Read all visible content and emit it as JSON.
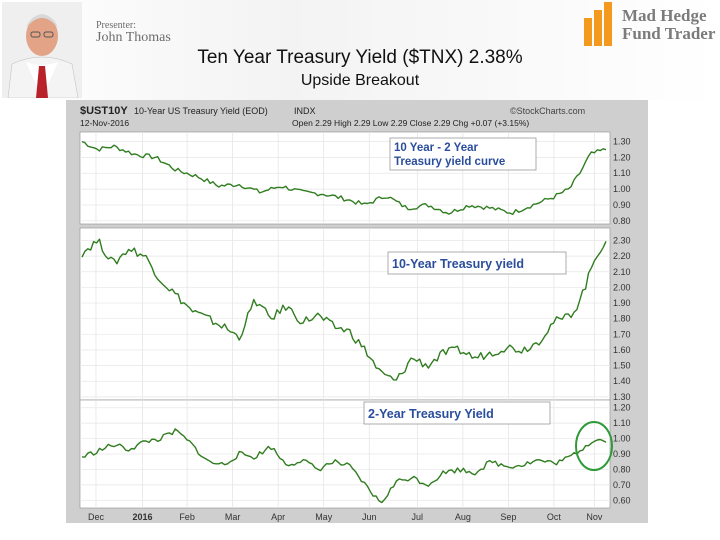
{
  "presenter": {
    "label": "Presenter:",
    "name": "John Thomas"
  },
  "logo": {
    "line1": "Mad Hedge",
    "line2": "Fund Trader",
    "bar_color": "#f39a1e"
  },
  "title": "Ten Year Treasury Yield ($TNX) 2.38%",
  "subtitle": "Upside Breakout",
  "chart_header": {
    "symbol": "$UST10Y",
    "description": "10-Year US Treasury Yield (EOD)",
    "exchange": "INDX",
    "source": "©StockCharts.com",
    "date": "12-Nov-2016",
    "ohlc": "Open 2.29  High 2.29  Low 2.29  Close 2.29  Chg +0.07 (+3.15%)"
  },
  "chart_data": [
    {
      "type": "line",
      "title": "10 Year - 2 Year Treasury yield curve",
      "ylim": [
        0.78,
        1.36
      ],
      "yticks": [
        "1.30",
        "1.20",
        "1.10",
        "1.00",
        "0.90",
        "0.80"
      ],
      "ytick_values": [
        1.3,
        1.2,
        1.1,
        1.0,
        0.9,
        0.8
      ],
      "x": [
        0,
        0.03,
        0.06,
        0.1,
        0.14,
        0.18,
        0.22,
        0.26,
        0.3,
        0.34,
        0.38,
        0.42,
        0.46,
        0.5,
        0.54,
        0.58,
        0.62,
        0.66,
        0.7,
        0.74,
        0.78,
        0.82,
        0.86,
        0.9,
        0.93,
        0.95,
        0.97,
        1.0
      ],
      "y": [
        1.3,
        1.25,
        1.27,
        1.22,
        1.2,
        1.12,
        1.08,
        1.02,
        1.03,
        0.98,
        1.02,
        0.98,
        0.97,
        0.94,
        0.9,
        0.96,
        0.88,
        0.9,
        0.85,
        0.9,
        0.88,
        0.85,
        0.9,
        0.95,
        1.0,
        1.1,
        1.22,
        1.25
      ],
      "color": "#2f7d1f"
    },
    {
      "type": "line",
      "title": "10-Year Treasury yield",
      "ylim": [
        1.28,
        2.38
      ],
      "yticks": [
        "2.30",
        "2.20",
        "2.10",
        "2.00",
        "1.90",
        "1.80",
        "1.70",
        "1.60",
        "1.50",
        "1.40",
        "1.30"
      ],
      "ytick_values": [
        2.3,
        2.2,
        2.1,
        2.0,
        1.9,
        1.8,
        1.7,
        1.6,
        1.5,
        1.4,
        1.3
      ],
      "x": [
        0,
        0.03,
        0.06,
        0.09,
        0.12,
        0.15,
        0.18,
        0.21,
        0.24,
        0.27,
        0.3,
        0.33,
        0.36,
        0.39,
        0.42,
        0.45,
        0.48,
        0.51,
        0.54,
        0.57,
        0.6,
        0.63,
        0.66,
        0.69,
        0.72,
        0.75,
        0.78,
        0.81,
        0.84,
        0.87,
        0.9,
        0.92,
        0.94,
        0.96,
        0.98,
        1.0
      ],
      "y": [
        2.22,
        2.3,
        2.15,
        2.25,
        2.2,
        2.05,
        1.95,
        1.85,
        1.8,
        1.75,
        1.68,
        1.92,
        1.8,
        1.88,
        1.78,
        1.82,
        1.75,
        1.72,
        1.6,
        1.45,
        1.4,
        1.55,
        1.5,
        1.58,
        1.6,
        1.55,
        1.58,
        1.62,
        1.6,
        1.65,
        1.78,
        1.8,
        1.85,
        2.0,
        2.2,
        2.3
      ],
      "color": "#2f7d1f"
    },
    {
      "type": "line",
      "title": "2-Year Treasury Yield",
      "ylim": [
        0.55,
        1.25
      ],
      "yticks": [
        "1.20",
        "1.10",
        "1.00",
        "0.90",
        "0.80",
        "0.70",
        "0.60"
      ],
      "ytick_values": [
        1.2,
        1.1,
        1.0,
        0.9,
        0.8,
        0.7,
        0.6
      ],
      "x": [
        0,
        0.03,
        0.06,
        0.09,
        0.12,
        0.15,
        0.18,
        0.21,
        0.24,
        0.27,
        0.3,
        0.33,
        0.36,
        0.39,
        0.42,
        0.45,
        0.48,
        0.51,
        0.54,
        0.57,
        0.6,
        0.63,
        0.66,
        0.69,
        0.72,
        0.75,
        0.78,
        0.81,
        0.84,
        0.87,
        0.9,
        0.92,
        0.94,
        0.96,
        0.98,
        1.0
      ],
      "y": [
        0.88,
        0.92,
        0.96,
        0.93,
        0.98,
        1.0,
        1.05,
        0.96,
        0.85,
        0.83,
        0.9,
        0.88,
        0.95,
        0.83,
        0.86,
        0.8,
        0.85,
        0.82,
        0.7,
        0.58,
        0.72,
        0.75,
        0.7,
        0.78,
        0.8,
        0.78,
        0.85,
        0.82,
        0.83,
        0.86,
        0.84,
        0.86,
        0.9,
        0.95,
        1.0,
        0.98
      ],
      "color": "#2f7d1f"
    }
  ],
  "x_axis": {
    "labels": [
      "Dec",
      "2016",
      "Feb",
      "Mar",
      "Apr",
      "May",
      "Jun",
      "Jul",
      "Aug",
      "Sep",
      "Oct",
      "Nov"
    ],
    "positions": [
      0.0,
      0.092,
      0.18,
      0.27,
      0.36,
      0.45,
      0.54,
      0.635,
      0.725,
      0.815,
      0.905,
      0.985
    ]
  }
}
